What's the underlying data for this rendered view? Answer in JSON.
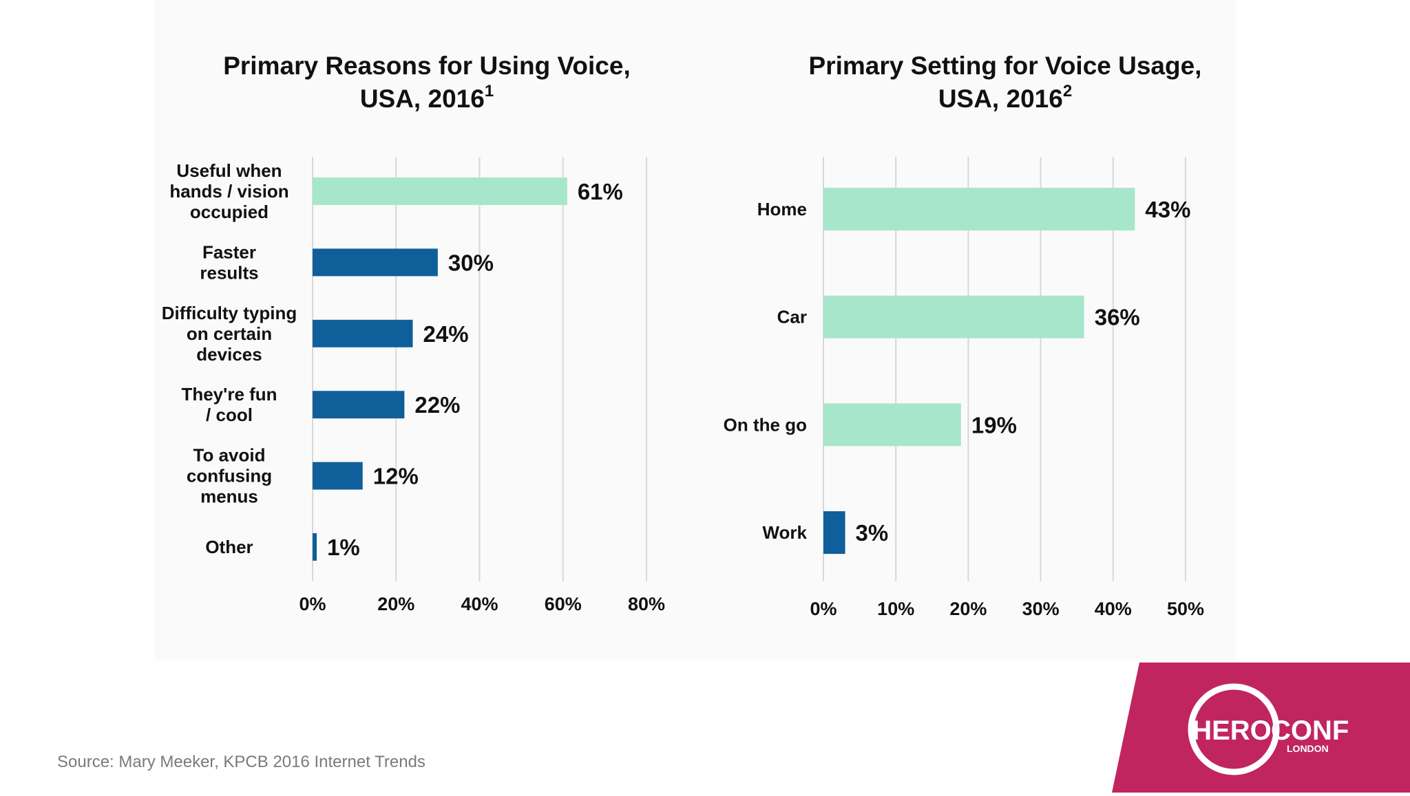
{
  "colors": {
    "accent_green": "#a8e6cc",
    "accent_blue": "#0f5f9a",
    "grid": "#d8d8d8",
    "text": "#111111",
    "source_text": "#7a7a7a",
    "brand_magenta": "#c1255f",
    "logo_white": "#ffffff"
  },
  "source": "Source: Mary Meeker, KPCB 2016 Internet Trends",
  "logo": {
    "text_left": "HERO",
    "text_right": "CONF",
    "subtext": "LONDON"
  },
  "chart_data": [
    {
      "type": "bar",
      "orientation": "horizontal",
      "title": "Primary Reasons for Using Voice, USA, 2016",
      "title_line1": "Primary Reasons for Using Voice,",
      "title_line2": "USA, 2016",
      "title_footnote": "1",
      "categories": [
        [
          "Useful when",
          "hands / vision",
          "occupied"
        ],
        [
          "Faster",
          "results"
        ],
        [
          "Difficulty typing",
          "on certain",
          "devices"
        ],
        [
          "They're fun",
          "/ cool"
        ],
        [
          "To avoid",
          "confusing",
          "menus"
        ],
        [
          "Other"
        ]
      ],
      "values": [
        61,
        30,
        24,
        22,
        12,
        1
      ],
      "value_labels": [
        "61%",
        "30%",
        "24%",
        "22%",
        "12%",
        "1%"
      ],
      "bar_colors": [
        "green",
        "blue",
        "blue",
        "blue",
        "blue",
        "blue"
      ],
      "xlim": [
        0,
        80
      ],
      "xticks": [
        0,
        20,
        40,
        60,
        80
      ],
      "xtick_labels": [
        "0%",
        "20%",
        "40%",
        "60%",
        "80%"
      ],
      "grid": true,
      "legend": "none"
    },
    {
      "type": "bar",
      "orientation": "horizontal",
      "title": "Primary Setting for Voice Usage, USA, 2016",
      "title_line1": "Primary Setting for Voice Usage,",
      "title_line2": "USA, 2016",
      "title_footnote": "2",
      "categories": [
        [
          "Home"
        ],
        [
          "Car"
        ],
        [
          "On the go"
        ],
        [
          "Work"
        ]
      ],
      "values": [
        43,
        36,
        19,
        3
      ],
      "value_labels": [
        "43%",
        "36%",
        "19%",
        "3%"
      ],
      "bar_colors": [
        "green",
        "green",
        "green",
        "blue"
      ],
      "xlim": [
        0,
        50
      ],
      "xticks": [
        0,
        10,
        20,
        30,
        40,
        50
      ],
      "xtick_labels": [
        "0%",
        "10%",
        "20%",
        "30%",
        "40%",
        "50%"
      ],
      "grid": true,
      "legend": "none"
    }
  ]
}
